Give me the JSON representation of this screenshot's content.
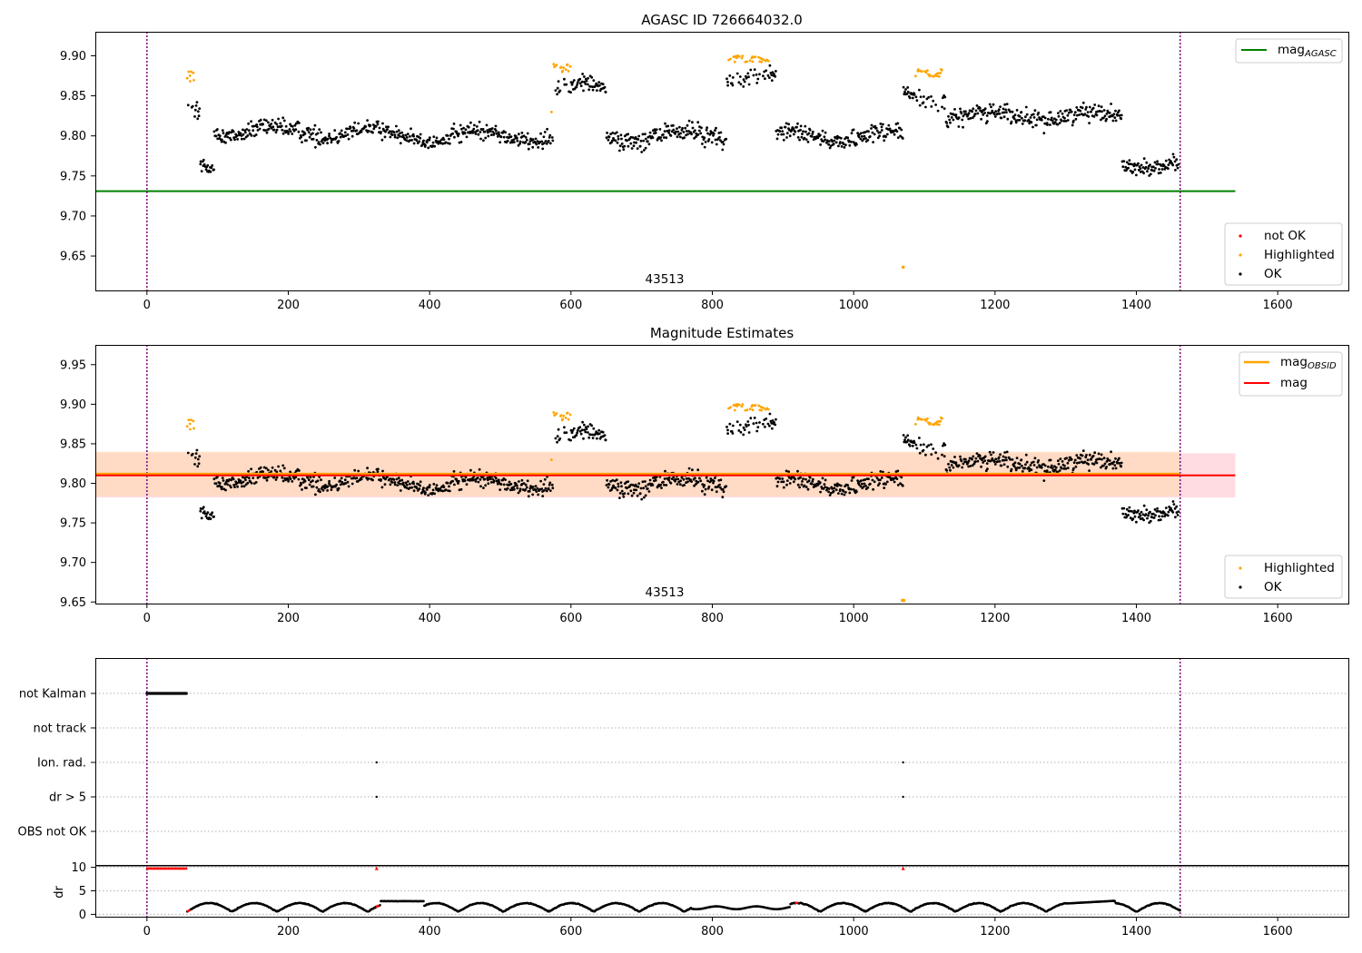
{
  "colors": {
    "ok": "#000000",
    "not_ok": "#ff0000",
    "highlighted": "#ffa500",
    "mag_agasc": "#008000",
    "mag_obsid": "#ffa500",
    "mag": "#ff0000",
    "obs_line": "#800080",
    "band_red": "#ffc0cb",
    "band_orange": "#ffdab9"
  },
  "chart_data": [
    {
      "type": "scatter",
      "title": "AGASC ID 726664032.0",
      "xlim": [
        -73,
        1700
      ],
      "ylim": [
        9.607,
        9.93
      ],
      "xticks": [
        "0",
        "200",
        "400",
        "600",
        "800",
        "1000",
        "1200",
        "1400",
        "1600"
      ],
      "yticks": [
        "9.65",
        "9.70",
        "9.75",
        "9.80",
        "9.85",
        "9.90"
      ],
      "obsid_label": "43513",
      "obs_boundaries": [
        0,
        1462
      ],
      "outlier_point": {
        "x": 1070,
        "y": 9.636
      },
      "reference_lines": [
        {
          "name": "mag_AGASC",
          "value": 9.731,
          "x_range": [
            -73,
            1540
          ]
        }
      ],
      "legend_lines": [
        {
          "label": "mag",
          "sub": "AGASC"
        }
      ],
      "legend_points": [
        "not OK",
        "Highlighted",
        "OK"
      ],
      "series_segments": [
        {
          "x0": 57,
          "x1": 75,
          "base": 9.83,
          "amp": 0.03
        },
        {
          "x0": 75,
          "x1": 95,
          "base": 9.765,
          "amp": 0.015
        },
        {
          "x0": 95,
          "x1": 330,
          "base": 9.805,
          "amp": 0.018
        },
        {
          "x0": 330,
          "x1": 575,
          "base": 9.8,
          "amp": 0.018
        },
        {
          "x0": 575,
          "x1": 650,
          "base": 9.86,
          "amp": 0.018
        },
        {
          "x0": 650,
          "x1": 820,
          "base": 9.8,
          "amp": 0.02
        },
        {
          "x0": 820,
          "x1": 890,
          "base": 9.875,
          "amp": 0.015
        },
        {
          "x0": 890,
          "x1": 1070,
          "base": 9.8,
          "amp": 0.018
        },
        {
          "x0": 1070,
          "x1": 1130,
          "base": 9.85,
          "amp": 0.02
        },
        {
          "x0": 1130,
          "x1": 1380,
          "base": 9.825,
          "amp": 0.018
        },
        {
          "x0": 1380,
          "x1": 1460,
          "base": 9.765,
          "amp": 0.015
        }
      ],
      "highlighted_ranges": [
        [
          57,
          68
        ],
        [
          572,
          606
        ],
        [
          822,
          880
        ],
        [
          1085,
          1125
        ],
        [
          1410,
          1412
        ]
      ]
    },
    {
      "type": "scatter",
      "title": "Magnitude Estimates",
      "xlim": [
        -73,
        1700
      ],
      "ylim": [
        9.648,
        9.975
      ],
      "xticks": [
        "0",
        "200",
        "400",
        "600",
        "800",
        "1000",
        "1200",
        "1400",
        "1600"
      ],
      "yticks": [
        "9.65",
        "9.70",
        "9.75",
        "9.80",
        "9.85",
        "9.90",
        "9.95"
      ],
      "obsid_label": "43513",
      "outlier_point": {
        "x": 1070,
        "y": 9.652
      },
      "reference_lines": [
        {
          "name": "mag_OBSID",
          "value": 9.812,
          "x_range": [
            -73,
            1462
          ]
        },
        {
          "name": "mag",
          "value": 9.81,
          "x_range": [
            -73,
            1540
          ]
        }
      ],
      "bands": [
        {
          "name": "mag",
          "low": 9.782,
          "high": 9.838,
          "x_range": [
            -73,
            1540
          ]
        },
        {
          "name": "mag_OBSID",
          "low": 9.784,
          "high": 9.84,
          "x_range": [
            -73,
            1462
          ]
        }
      ],
      "legend_lines": [
        {
          "label": "mag",
          "sub": "OBSID"
        },
        {
          "label": "mag",
          "sub": ""
        }
      ],
      "legend_points": [
        "Highlighted",
        "OK"
      ]
    },
    {
      "type": "scatter",
      "title": "",
      "xlim": [
        -73,
        1700
      ],
      "flag_categories": [
        "not Kalman",
        "not track",
        "Ion. rad.",
        "dr > 5",
        "OBS not OK"
      ],
      "flag_points": [
        {
          "flag": "not Kalman",
          "x_range": [
            0,
            57
          ]
        },
        {
          "flag": "Ion. rad.",
          "x": 325
        },
        {
          "flag": "Ion. rad.",
          "x": 1070
        },
        {
          "flag": "dr > 5",
          "x": 325
        },
        {
          "flag": "dr > 5",
          "x": 1070
        }
      ]
    },
    {
      "type": "scatter",
      "title": "",
      "ylabel": "dr",
      "xlim": [
        -73,
        1700
      ],
      "ylim": [
        -0.5,
        10.5
      ],
      "xticks": [
        "0",
        "200",
        "400",
        "600",
        "800",
        "1000",
        "1200",
        "1400",
        "1600"
      ],
      "yticks": [
        "0",
        "5",
        "10"
      ],
      "clipped_red_ranges": [
        [
          0,
          57
        ],
        [
          325,
          326
        ],
        [
          1070,
          1071
        ]
      ]
    }
  ]
}
